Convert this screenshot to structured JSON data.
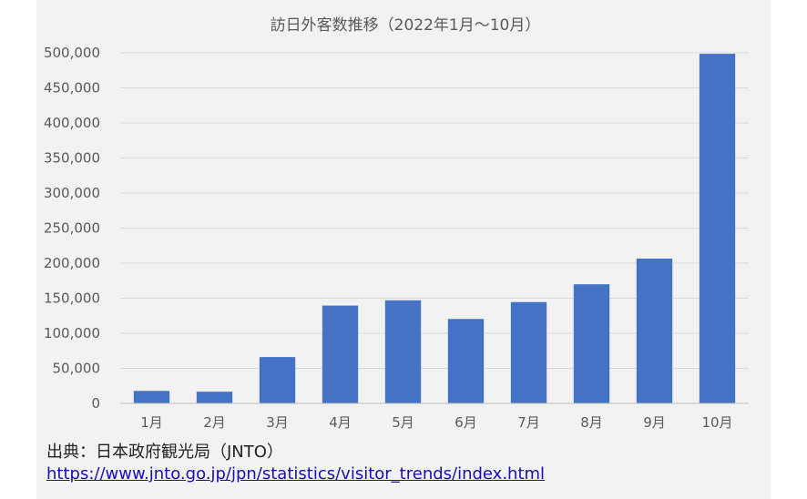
{
  "chart_data": {
    "type": "bar",
    "title": "訪日外客数推移（2022年1月～10月）",
    "xlabel": "",
    "ylabel": "",
    "categories": [
      "1月",
      "2月",
      "3月",
      "4月",
      "5月",
      "6月",
      "7月",
      "8月",
      "9月",
      "10月"
    ],
    "values": [
      17800,
      16700,
      66100,
      139500,
      147000,
      120400,
      144500,
      169900,
      206500,
      498600
    ],
    "ylim": [
      0,
      500000
    ],
    "yticks": [
      0,
      50000,
      100000,
      150000,
      200000,
      250000,
      300000,
      350000,
      400000,
      450000,
      500000
    ],
    "ytick_labels": [
      "0",
      "50,000",
      "100,000",
      "150,000",
      "200,000",
      "250,000",
      "300,000",
      "350,000",
      "400,000",
      "450,000",
      "500,000"
    ],
    "grid": true,
    "bar_color": "#4472c4",
    "background_color": "#f2f2f2"
  },
  "source": {
    "text": "出典：日本政府観光局（JNTO）",
    "url": "https://www.jnto.go.jp/jpn/statistics/visitor_trends/index.html"
  }
}
